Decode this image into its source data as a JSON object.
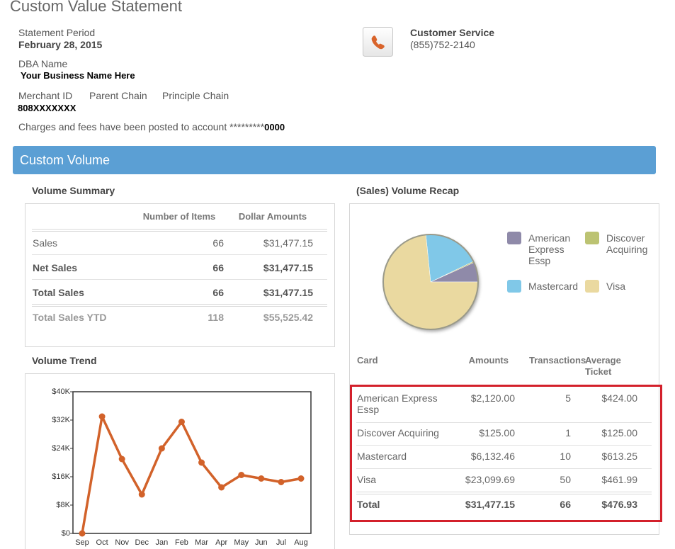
{
  "header": {
    "title": "Custom Value Statement"
  },
  "statement": {
    "period_label": "Statement Period",
    "period": "February 28, 2015",
    "dba_label": "DBA Name",
    "dba": "Your Business Name Here",
    "merchant_id_label": "Merchant ID",
    "parent_chain_label": "Parent Chain",
    "principle_chain_label": "Principle Chain",
    "merchant_id": "808XXXXXXX",
    "account_note": "Charges and fees have been posted to account *********",
    "account_suffix": "0000"
  },
  "customer_service": {
    "label": "Customer Service",
    "phone": "(855)752-2140"
  },
  "banner": "Custom Volume",
  "volume_summary": {
    "title": "Volume Summary",
    "columns": [
      "Number of Items",
      "Dollar Amounts"
    ],
    "rows": [
      [
        "Sales",
        "66",
        "$31,477.15"
      ],
      [
        "Net Sales",
        "66",
        "$31,477.15"
      ],
      [
        "Total Sales",
        "66",
        "$31,477.15"
      ],
      [
        "Total Sales YTD",
        "118",
        "$55,525.42"
      ]
    ]
  },
  "volume_recap": {
    "columns": [
      "Card",
      "Amounts",
      "Transactions",
      "Average Ticket"
    ],
    "rows": [
      [
        "American Express Essp",
        "$2,120.00",
        "5",
        "$424.00"
      ],
      [
        "Discover Acquiring",
        "$125.00",
        "1",
        "$125.00"
      ],
      [
        "Mastercard",
        "$6,132.46",
        "10",
        "$613.25"
      ],
      [
        "Visa",
        "$23,099.69",
        "50",
        "$461.99"
      ]
    ],
    "total": [
      "Total",
      "$31,477.15",
      "66",
      "$476.93"
    ]
  },
  "chart_data": [
    {
      "type": "pie",
      "title": "(Sales) Volume Recap",
      "categories": [
        "American Express Essp",
        "Discover Acquiring",
        "Mastercard",
        "Visa"
      ],
      "values": [
        2120,
        125,
        6132.46,
        23099.69
      ],
      "colors": [
        "#8f8aa9",
        "#bcc372",
        "#80c8e8",
        "#ead9a0"
      ]
    },
    {
      "type": "line",
      "title": "Volume Trend",
      "categories": [
        "Sep",
        "Oct",
        "Nov",
        "Dec",
        "Jan",
        "Feb",
        "Mar",
        "Apr",
        "May",
        "Jun",
        "Jul",
        "Aug"
      ],
      "values": [
        0,
        33000,
        21000,
        11000,
        24000,
        31500,
        20000,
        13000,
        16500,
        15500,
        14500,
        15500
      ],
      "color": "#d2622a",
      "ylim": [
        0,
        40000
      ],
      "yticks": [
        {
          "value": 0,
          "label": "$0"
        },
        {
          "value": 8000,
          "label": "$8K"
        },
        {
          "value": 16000,
          "label": "$16K"
        },
        {
          "value": 24000,
          "label": "$24K"
        },
        {
          "value": 32000,
          "label": "$32K"
        },
        {
          "value": 40000,
          "label": "$40K"
        }
      ]
    }
  ]
}
